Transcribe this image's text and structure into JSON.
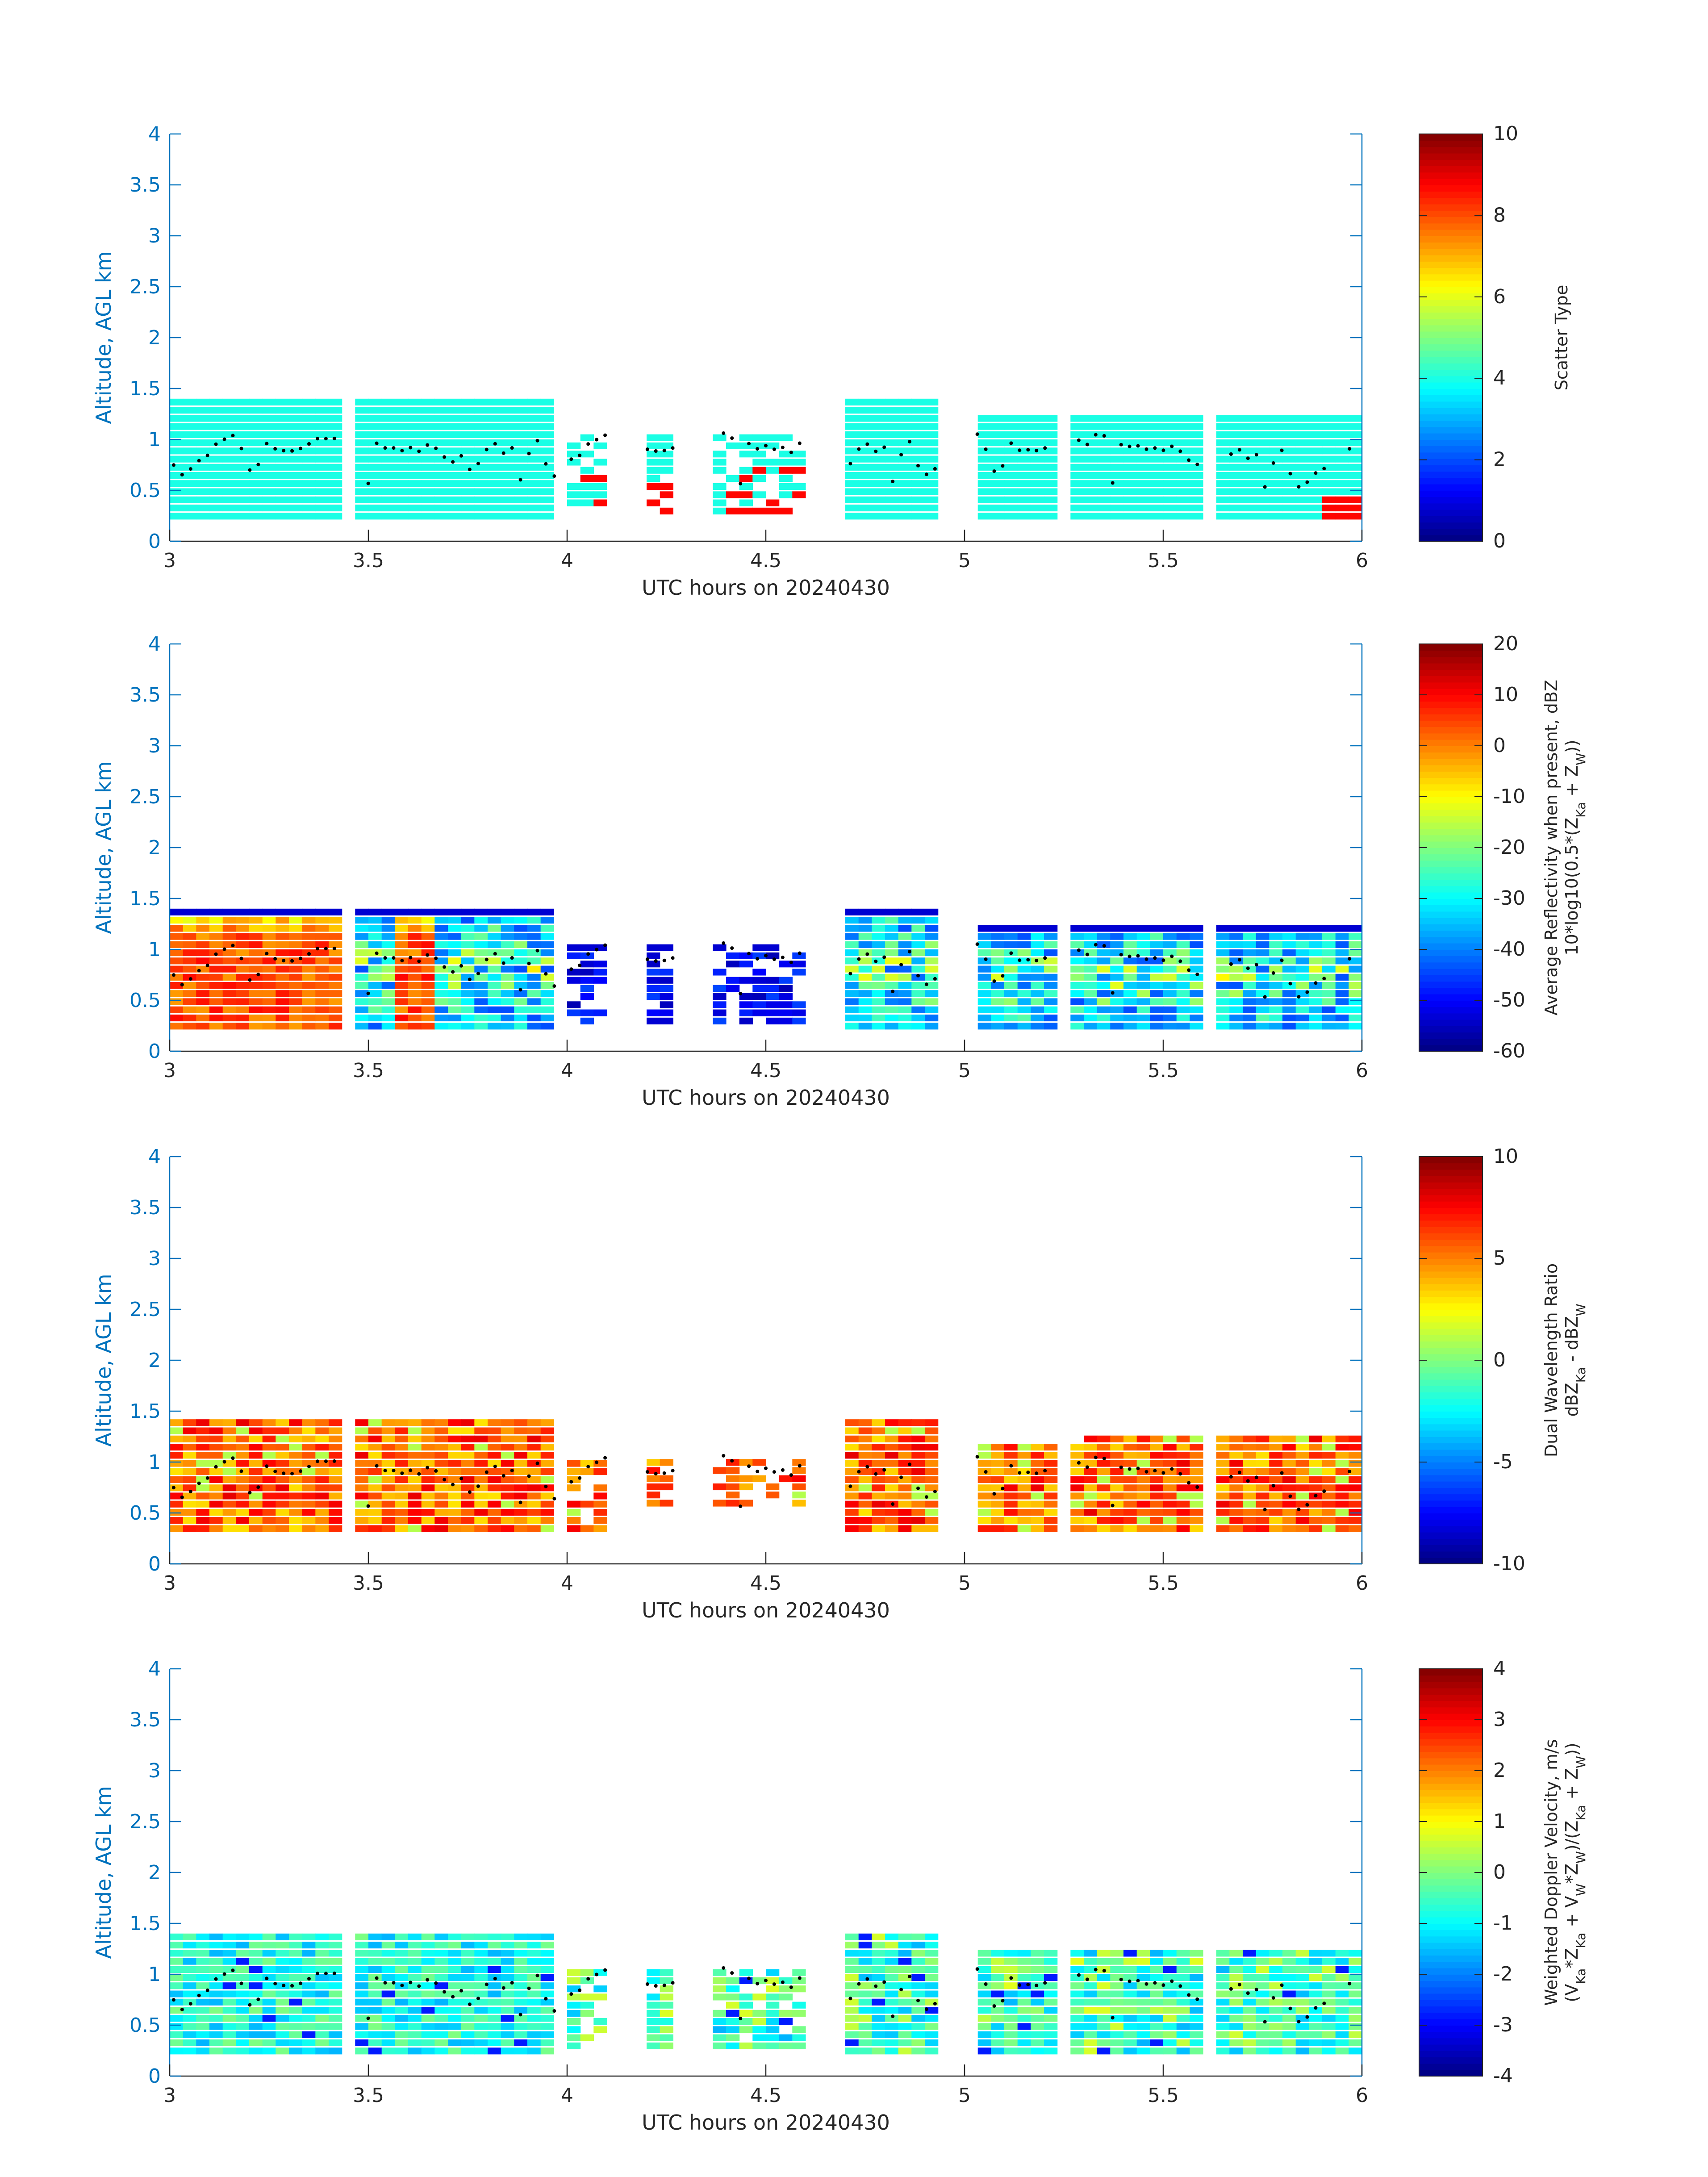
{
  "chart_data": [
    {
      "type": "heatmap",
      "title": "",
      "xlabel": "UTC hours on 20240430",
      "ylabel": "Altitude, AGL km",
      "xlim": [
        3,
        6
      ],
      "ylim": [
        0,
        4
      ],
      "x_ticks": [
        "3",
        "3.5",
        "4",
        "4.5",
        "5",
        "5.5",
        "6"
      ],
      "y_ticks": [
        "0",
        "0.5",
        "1",
        "1.5",
        "2",
        "2.5",
        "3",
        "3.5",
        "4"
      ],
      "colorbar": {
        "label_lines": [
          "Scatter Type"
        ],
        "range": [
          0,
          10
        ],
        "ticks": [
          "0",
          "2",
          "4",
          "6",
          "8",
          "10"
        ]
      },
      "field": "scatter_type",
      "colormap": "jet",
      "cloud_segments": [
        [
          3.0,
          3.42
        ],
        [
          3.48,
          3.97
        ],
        [
          4.0,
          4.1
        ],
        [
          4.2,
          4.27
        ],
        [
          4.38,
          4.6
        ],
        [
          4.7,
          4.93
        ],
        [
          5.03,
          5.22
        ],
        [
          5.28,
          5.6
        ],
        [
          5.65,
          5.92
        ],
        [
          5.95,
          6.0
        ]
      ],
      "cloud_top_km": 1.35,
      "cloud_base_km": 0.2,
      "points_layer_km": [
        0.75,
        0.65,
        0.7,
        0.8,
        0.85,
        0.95,
        1.0,
        1.05,
        0.9,
        0.7,
        0.75,
        0.95,
        0.9,
        0.9,
        0.88,
        0.92,
        0.95,
        1.0,
        1.02,
        1.0,
        0.95,
        1.05,
        1.02,
        0.58,
        0.95,
        0.92,
        0.93,
        0.9,
        0.92,
        0.88,
        0.95,
        0.9,
        0.82,
        0.78,
        0.85,
        0.72,
        0.75,
        0.9,
        0.95,
        0.88,
        0.92,
        0.6,
        0.85,
        0.98
      ]
    },
    {
      "type": "heatmap",
      "title": "",
      "xlabel": "UTC hours on 20240430",
      "ylabel": "Altitude, AGL km",
      "xlim": [
        3,
        6
      ],
      "ylim": [
        0,
        4
      ],
      "x_ticks": [
        "3",
        "3.5",
        "4",
        "4.5",
        "5",
        "5.5",
        "6"
      ],
      "y_ticks": [
        "0",
        "0.5",
        "1",
        "1.5",
        "2",
        "2.5",
        "3",
        "3.5",
        "4"
      ],
      "colorbar": {
        "label_lines": [
          "Average Reflectivity when present, dBZ",
          "10*log10(0.5*(Z_Ka + Z_W))"
        ],
        "range": [
          -60,
          20
        ],
        "ticks": [
          "-60",
          "-50",
          "-40",
          "-30",
          "-20",
          "-10",
          "0",
          "10",
          "20"
        ]
      },
      "field": "reflectivity",
      "colormap": "jet"
    },
    {
      "type": "heatmap",
      "title": "",
      "xlabel": "UTC hours on 20240430",
      "ylabel": "Altitude, AGL km",
      "xlim": [
        3,
        6
      ],
      "ylim": [
        0,
        4
      ],
      "x_ticks": [
        "3",
        "3.5",
        "4",
        "4.5",
        "5",
        "5.5",
        "6"
      ],
      "y_ticks": [
        "0",
        "0.5",
        "1",
        "1.5",
        "2",
        "2.5",
        "3",
        "3.5",
        "4"
      ],
      "colorbar": {
        "label_lines": [
          "Dual Wavelength Ratio",
          "dBZ_Ka - dBZ_W"
        ],
        "range": [
          -10,
          10
        ],
        "ticks": [
          "-10",
          "-5",
          "0",
          "5",
          "10"
        ]
      },
      "field": "dwr",
      "colormap": "jet"
    },
    {
      "type": "heatmap",
      "title": "",
      "xlabel": "UTC hours on 20240430",
      "ylabel": "Altitude, AGL km",
      "xlim": [
        3,
        6
      ],
      "ylim": [
        0,
        4
      ],
      "x_ticks": [
        "3",
        "3.5",
        "4",
        "4.5",
        "5",
        "5.5",
        "6"
      ],
      "y_ticks": [
        "0",
        "0.5",
        "1",
        "1.5",
        "2",
        "2.5",
        "3",
        "3.5",
        "4"
      ],
      "colorbar": {
        "label_lines": [
          "Weighted Doppler Velocity, m/s",
          "(V_Ka*Z_Ka + V_W*Z_W)/(Z_Ka + Z_W))"
        ],
        "range": [
          -4,
          4
        ],
        "ticks": [
          "-4",
          "-3",
          "-2",
          "-1",
          "0",
          "1",
          "2",
          "3",
          "4"
        ]
      },
      "field": "doppler_velocity",
      "colormap": "jet"
    }
  ],
  "colors": {
    "axis_blue": "#0072BD",
    "text_dark": "#262626",
    "dot": "#000000"
  }
}
